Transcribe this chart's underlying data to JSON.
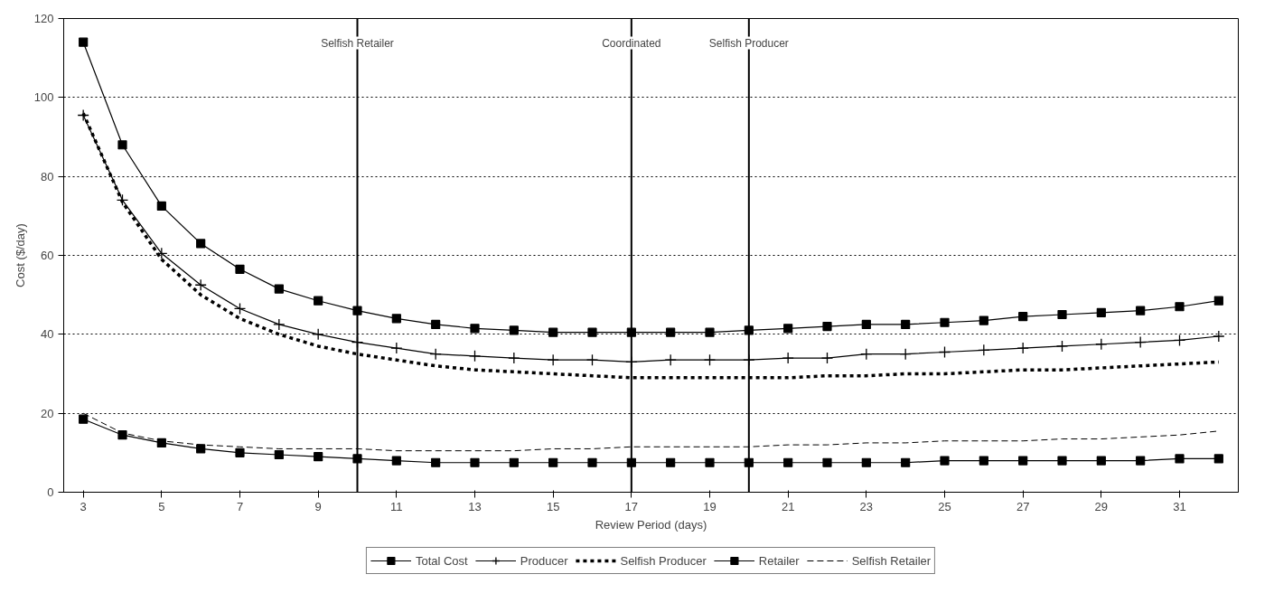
{
  "chart_data": {
    "type": "line",
    "xlabel": "Review Period (days)",
    "ylabel": "Cost ($/day)",
    "x": [
      3,
      4,
      5,
      6,
      7,
      8,
      9,
      10,
      11,
      12,
      13,
      14,
      15,
      16,
      17,
      18,
      19,
      20,
      21,
      22,
      23,
      24,
      25,
      26,
      27,
      28,
      29,
      30,
      31,
      32
    ],
    "xlim": [
      2.5,
      32.5
    ],
    "xticks": [
      3,
      5,
      7,
      9,
      11,
      13,
      15,
      17,
      19,
      21,
      23,
      25,
      27,
      29,
      31
    ],
    "ylim": [
      0,
      120
    ],
    "yticks": [
      0,
      20,
      40,
      60,
      80,
      100,
      120
    ],
    "grid": "y",
    "legend": "bottom",
    "series": [
      {
        "name": "Total Cost",
        "color": "#000000",
        "marker": "square",
        "line_style": "solid",
        "values": [
          114,
          88,
          72.5,
          63,
          56.5,
          51.5,
          48.5,
          46,
          44,
          42.5,
          41.5,
          41,
          40.5,
          40.5,
          40.5,
          40.5,
          40.5,
          41,
          41.5,
          42,
          42.5,
          42.5,
          43,
          43.5,
          44.5,
          45,
          45.5,
          46,
          47,
          48.5
        ]
      },
      {
        "name": "Producer",
        "color": "#000000",
        "marker": "cross",
        "line_style": "solid",
        "values": [
          95.5,
          74,
          60.5,
          52.5,
          46.5,
          42.5,
          40,
          38,
          36.5,
          35,
          34.5,
          34,
          33.5,
          33.5,
          33,
          33.5,
          33.5,
          33.5,
          34,
          34,
          35,
          35,
          35.5,
          36,
          36.5,
          37,
          37.5,
          38,
          38.5,
          39.5
        ]
      },
      {
        "name": "Selfish Producer",
        "color": "#000000",
        "marker": "none",
        "line_style": "dotted",
        "values": [
          96,
          73.5,
          59,
          50,
          44,
          40,
          37,
          35,
          33.5,
          32,
          31,
          30.5,
          30,
          29.5,
          29,
          29,
          29,
          29,
          29,
          29.5,
          29.5,
          30,
          30,
          30.5,
          31,
          31,
          31.5,
          32,
          32.5,
          33
        ]
      },
      {
        "name": "Retailer",
        "color": "#000000",
        "marker": "square",
        "line_style": "solid",
        "values": [
          18.5,
          14.5,
          12.5,
          11,
          10,
          9.5,
          9,
          8.5,
          8,
          7.5,
          7.5,
          7.5,
          7.5,
          7.5,
          7.5,
          7.5,
          7.5,
          7.5,
          7.5,
          7.5,
          7.5,
          7.5,
          8,
          8,
          8,
          8,
          8,
          8,
          8.5,
          8.5
        ]
      },
      {
        "name": "Selfish Retailer",
        "color": "#000000",
        "marker": "none",
        "line_style": "dashed",
        "values": [
          20,
          15,
          13,
          12,
          11.5,
          11,
          11,
          11,
          10.5,
          10.5,
          10.5,
          10.5,
          11,
          11,
          11.5,
          11.5,
          11.5,
          11.5,
          12,
          12,
          12.5,
          12.5,
          13,
          13,
          13,
          13.5,
          13.5,
          14,
          14.5,
          15.5
        ]
      }
    ],
    "ref_lines": [
      {
        "axis": "x",
        "value": 10,
        "label": "Selfish Retailer",
        "color": "#000000"
      },
      {
        "axis": "x",
        "value": 17,
        "label": "Coordinated",
        "color": "#000000"
      },
      {
        "axis": "x",
        "value": 20,
        "label": "Selfish Producer",
        "color": "#000000"
      }
    ]
  }
}
